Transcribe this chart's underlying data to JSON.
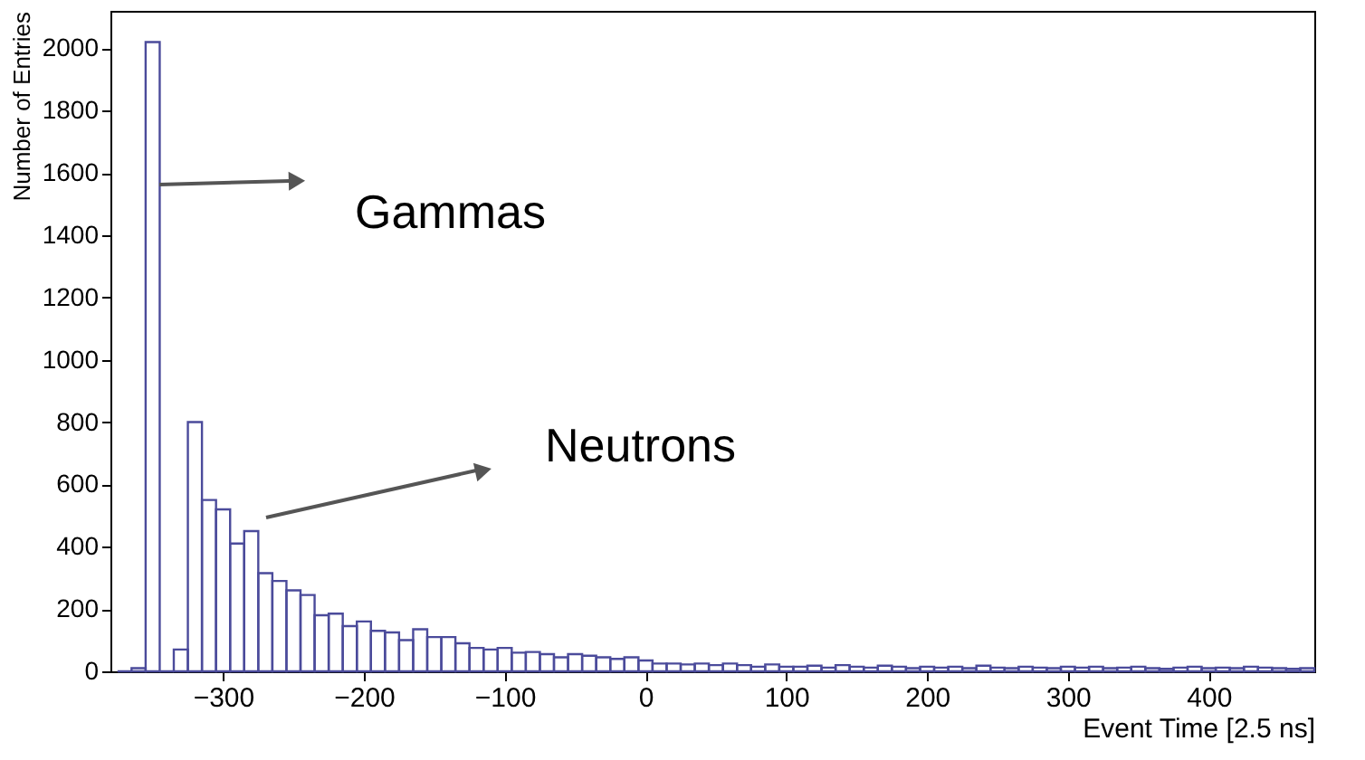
{
  "chart_data": {
    "type": "histogram",
    "xlabel": "Event Time [2.5 ns]",
    "ylabel": "Number of Entries",
    "bins": [
      -375,
      -365,
      -355,
      -345,
      -335,
      -325,
      -315,
      -305,
      -295,
      -285,
      -275,
      -265,
      -255,
      -245,
      -235,
      -225,
      -215,
      -205,
      -195,
      -185,
      -175,
      -165,
      -155,
      -145,
      -135,
      -125,
      -115,
      -105,
      -95,
      -85,
      -75,
      -65,
      -55,
      -45,
      -35,
      -25,
      -15,
      -5,
      5,
      15,
      25,
      35,
      45,
      55,
      65,
      75,
      85,
      95,
      105,
      115,
      125,
      135,
      145,
      155,
      165,
      175,
      185,
      195,
      205,
      215,
      225,
      235,
      245,
      255,
      265,
      275,
      285,
      295,
      305,
      315,
      325,
      335,
      345,
      355,
      365,
      375,
      385,
      395,
      405,
      415,
      425,
      435,
      445,
      455,
      465,
      475
    ],
    "values": [
      0,
      10,
      2020,
      0,
      70,
      800,
      550,
      520,
      410,
      450,
      315,
      290,
      260,
      245,
      180,
      185,
      145,
      160,
      130,
      125,
      100,
      135,
      110,
      110,
      90,
      75,
      70,
      75,
      60,
      62,
      55,
      45,
      55,
      50,
      45,
      40,
      45,
      35,
      25,
      25,
      22,
      25,
      20,
      25,
      20,
      15,
      22,
      15,
      15,
      18,
      12,
      20,
      15,
      12,
      18,
      15,
      10,
      15,
      12,
      15,
      10,
      18,
      12,
      10,
      15,
      12,
      10,
      15,
      12,
      15,
      10,
      12,
      15,
      10,
      8,
      12,
      15,
      10,
      12,
      10,
      15,
      12,
      10,
      8,
      10
    ],
    "color": "#4b4b9b",
    "xlim": [
      -380,
      475
    ],
    "ylim": [
      0,
      2120
    ],
    "xticks": [
      -300,
      -200,
      -100,
      0,
      100,
      200,
      300,
      400
    ],
    "yticks": [
      0,
      200,
      400,
      600,
      800,
      1000,
      1200,
      1400,
      1600,
      1800,
      2000
    ],
    "annotations": [
      "Gammas",
      "Neutrons"
    ]
  }
}
